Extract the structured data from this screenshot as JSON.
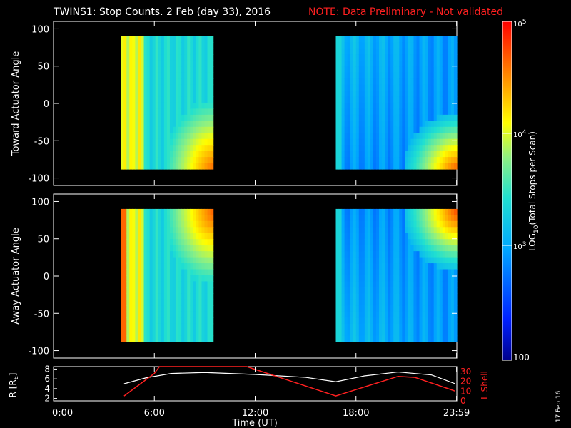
{
  "header": {
    "title": "TWINS1: Stop Counts.  2 Feb (day  33), 2016",
    "note": "NOTE: Data Preliminary - Not validated"
  },
  "panels": [
    {
      "ylabel": "Toward Actuator Angle"
    },
    {
      "ylabel": "Away Actuator Angle"
    }
  ],
  "colorbar": {
    "label": "LOG10(Total Stops per Scan)",
    "ticks": [
      "10^5",
      "10^4",
      "10^3",
      "100"
    ]
  },
  "orbit": {
    "left_label": "R [RE]",
    "right_label": "L Shell",
    "left_ticks": [
      "8",
      "6",
      "4",
      "2"
    ],
    "right_ticks": [
      "30",
      "20",
      "10",
      "0"
    ]
  },
  "xaxis": {
    "label": "Time (UT)",
    "ticks": [
      "0:00",
      "6:00",
      "12:00",
      "18:00",
      "23:59"
    ]
  },
  "footer": {
    "date": "17 Feb 16"
  },
  "colors": {
    "note": "#ff2020",
    "lshell": "#ff2020",
    "radius": "#ffffff"
  },
  "chart_data": {
    "type": "heatmap",
    "x_range_hours": [
      0,
      24
    ],
    "angle_ticks": [
      100,
      50,
      0,
      -50,
      -100
    ],
    "ylim": [
      -110,
      110
    ],
    "color_scale": "log",
    "clim": [
      100,
      100000
    ],
    "data_blocks_hours": [
      [
        4.0,
        9.5
      ],
      [
        16.8,
        24.0
      ]
    ],
    "data_angle_range": [
      -88,
      90
    ],
    "orbit_radius": {
      "x": [
        4.2,
        5.5,
        7.0,
        9.0,
        12.0,
        15.0,
        16.8,
        18.5,
        20.5,
        22.5,
        23.9
      ],
      "R": [
        5.0,
        6.2,
        7.1,
        7.3,
        6.9,
        6.3,
        5.4,
        6.6,
        7.4,
        6.8,
        5.0
      ]
    },
    "orbit_lshell": {
      "x": [
        4.2,
        6.0,
        6.3,
        11.5,
        16.8,
        20.5,
        21.5,
        23.9
      ],
      "L": [
        5,
        28,
        35,
        35,
        5,
        25,
        24,
        10
      ]
    }
  }
}
